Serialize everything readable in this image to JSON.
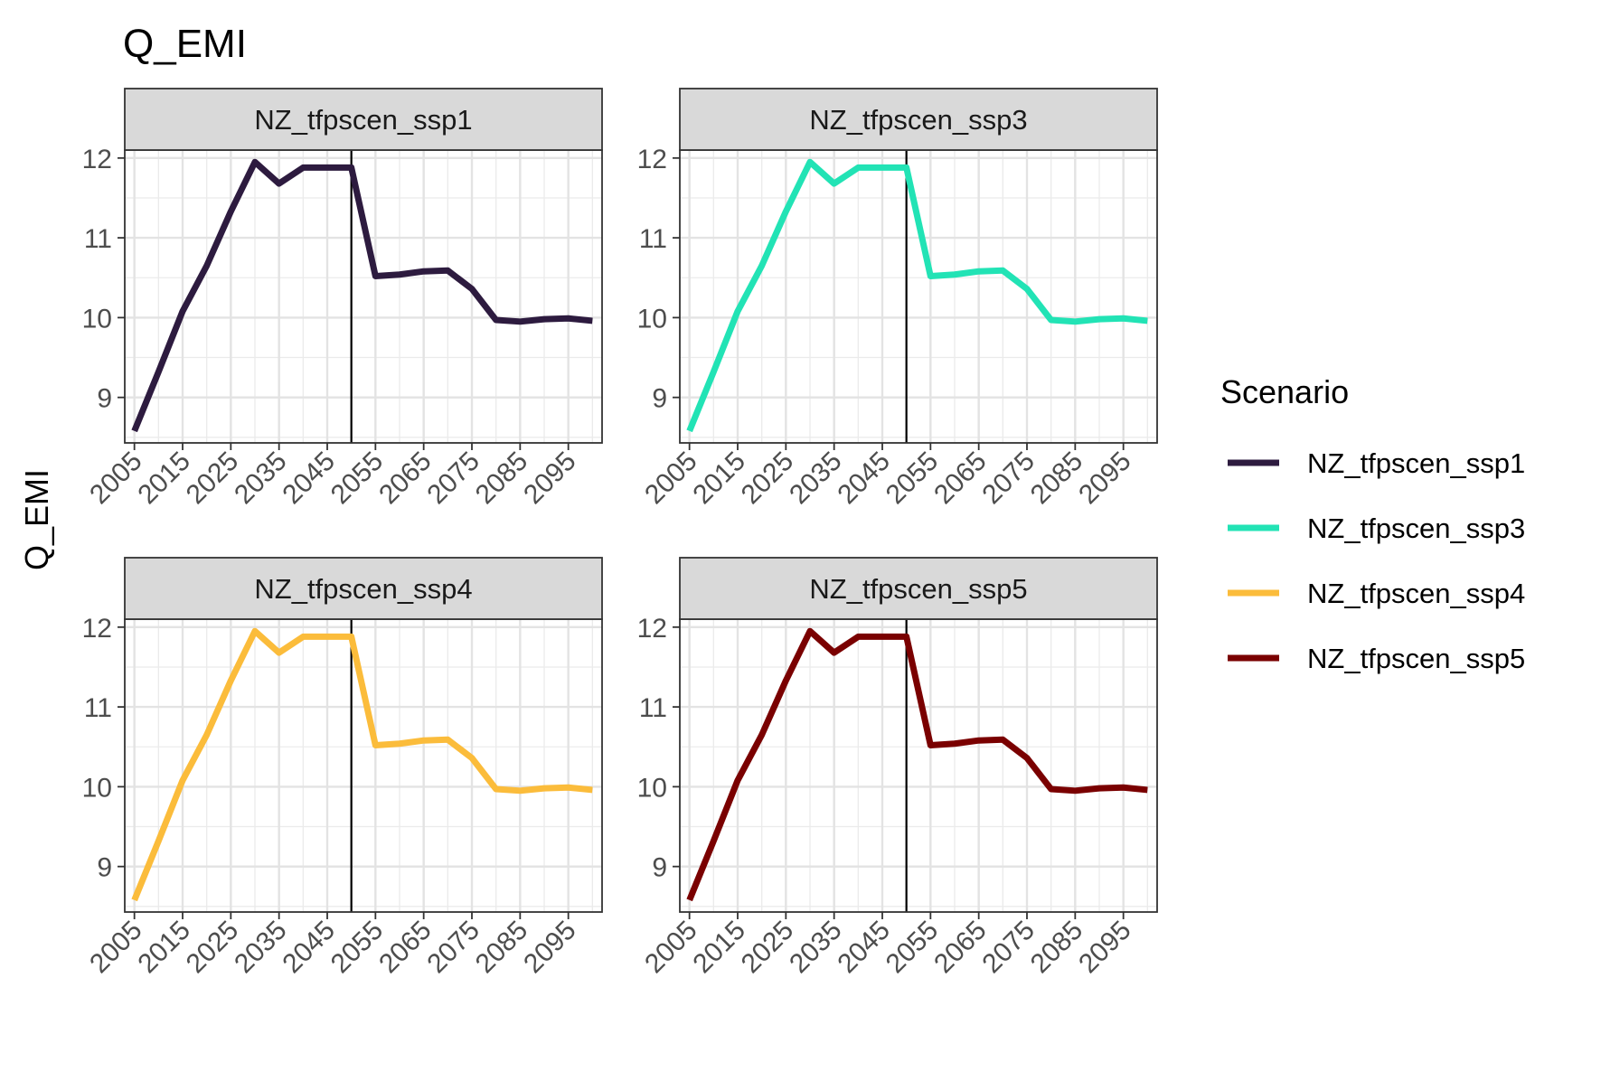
{
  "chart_data": {
    "type": "line",
    "title": "Q_EMI",
    "ylabel": "Q_EMI",
    "xlabel": "",
    "x": [
      2005,
      2010,
      2015,
      2020,
      2025,
      2030,
      2035,
      2040,
      2045,
      2050,
      2055,
      2060,
      2065,
      2070,
      2075,
      2080,
      2085,
      2090,
      2095,
      2100
    ],
    "x_ticks": [
      "2005",
      "2015",
      "2025",
      "2035",
      "2045",
      "2055",
      "2065",
      "2075",
      "2085",
      "2095"
    ],
    "y_ticks": [
      "9",
      "10",
      "11",
      "12"
    ],
    "xlim": [
      2003,
      2102
    ],
    "ylim": [
      8.43,
      12.1
    ],
    "vline_x": 2050,
    "grid": true,
    "legend": {
      "title": "Scenario",
      "placement": "right",
      "entries": [
        {
          "name": "NZ_tfpscen_ssp1",
          "color": "#2D1B3F"
        },
        {
          "name": "NZ_tfpscen_ssp3",
          "color": "#22E3B5"
        },
        {
          "name": "NZ_tfpscen_ssp4",
          "color": "#FBBC3B"
        },
        {
          "name": "NZ_tfpscen_ssp5",
          "color": "#7A0000"
        }
      ]
    },
    "panels": [
      {
        "strip": "NZ_tfpscen_ssp1",
        "color": "#2D1B3F",
        "values": [
          8.58,
          9.32,
          10.08,
          10.65,
          11.33,
          11.95,
          11.68,
          11.88,
          11.88,
          11.88,
          10.52,
          10.54,
          10.58,
          10.59,
          10.36,
          9.97,
          9.95,
          9.98,
          9.99,
          9.96
        ]
      },
      {
        "strip": "NZ_tfpscen_ssp3",
        "color": "#22E3B5",
        "values": [
          8.58,
          9.32,
          10.08,
          10.65,
          11.33,
          11.95,
          11.68,
          11.88,
          11.88,
          11.88,
          10.52,
          10.54,
          10.58,
          10.59,
          10.36,
          9.97,
          9.95,
          9.98,
          9.99,
          9.96
        ]
      },
      {
        "strip": "NZ_tfpscen_ssp4",
        "color": "#FBBC3B",
        "values": [
          8.58,
          9.32,
          10.08,
          10.65,
          11.33,
          11.95,
          11.68,
          11.88,
          11.88,
          11.88,
          10.52,
          10.54,
          10.58,
          10.59,
          10.36,
          9.97,
          9.95,
          9.98,
          9.99,
          9.96
        ]
      },
      {
        "strip": "NZ_tfpscen_ssp5",
        "color": "#7A0000",
        "values": [
          8.58,
          9.32,
          10.08,
          10.65,
          11.33,
          11.95,
          11.68,
          11.88,
          11.88,
          11.88,
          10.52,
          10.54,
          10.58,
          10.59,
          10.36,
          9.97,
          9.95,
          9.98,
          9.99,
          9.96
        ]
      }
    ]
  }
}
